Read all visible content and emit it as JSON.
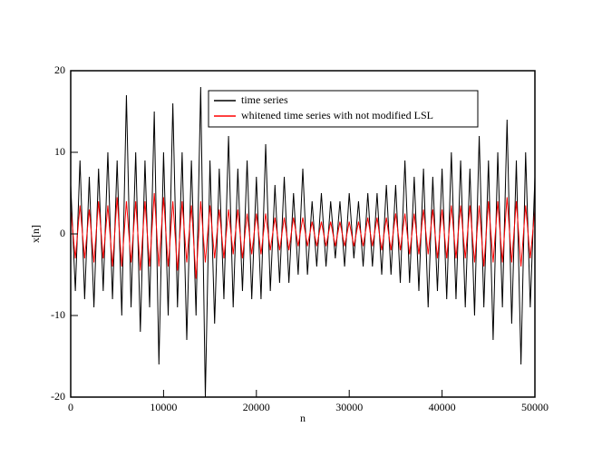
{
  "chart_data": {
    "type": "line",
    "xlabel": "n",
    "ylabel": "x[n]",
    "xlim": [
      0,
      50000
    ],
    "xticks": [
      0,
      10000,
      20000,
      30000,
      40000,
      50000
    ],
    "ylim": [
      -20,
      20
    ],
    "yticks": [
      -20,
      -10,
      0,
      10,
      20
    ],
    "legend": "upper center",
    "x": [
      0,
      500,
      1000,
      1500,
      2000,
      2500,
      3000,
      3500,
      4000,
      4500,
      5000,
      5500,
      6000,
      6500,
      7000,
      7500,
      8000,
      8500,
      9000,
      9500,
      10000,
      10500,
      11000,
      11500,
      12000,
      12500,
      13000,
      13500,
      14000,
      14500,
      15000,
      15500,
      16000,
      16500,
      17000,
      17500,
      18000,
      18500,
      19000,
      19500,
      20000,
      20500,
      21000,
      21500,
      22000,
      22500,
      23000,
      23500,
      24000,
      24500,
      25000,
      25500,
      26000,
      26500,
      27000,
      27500,
      28000,
      28500,
      29000,
      29500,
      30000,
      30500,
      31000,
      31500,
      32000,
      32500,
      33000,
      33500,
      34000,
      34500,
      35000,
      35500,
      36000,
      36500,
      37000,
      37500,
      38000,
      38500,
      39000,
      39500,
      40000,
      40500,
      41000,
      41500,
      42000,
      42500,
      43000,
      43500,
      44000,
      44500,
      45000,
      45500,
      46000,
      46500,
      47000,
      47500,
      48000,
      48500,
      49000,
      49500,
      50000
    ],
    "series": [
      {
        "name": "time series",
        "color": "#000000",
        "values": [
          6,
          -7,
          9,
          -8,
          7,
          -9,
          8,
          -7,
          10,
          -8,
          9,
          -10,
          17,
          -9,
          10,
          -12,
          9,
          -9,
          15,
          -16,
          10,
          -10,
          16,
          -9,
          10,
          -13,
          9,
          -10,
          18,
          -20,
          9,
          -11,
          8,
          -8,
          12,
          -9,
          8,
          -7,
          9,
          -8,
          7,
          -8,
          11,
          -7,
          6,
          -6,
          7,
          -6,
          5,
          -5,
          8,
          -5,
          4,
          -4,
          5,
          -4,
          4,
          -3,
          4,
          -4,
          5,
          -3,
          4,
          -4,
          5,
          -4,
          5,
          -5,
          6,
          -5,
          6,
          -6,
          9,
          -6,
          7,
          -7,
          8,
          -9,
          7,
          -7,
          8,
          -8,
          10,
          -8,
          9,
          -9,
          8,
          -10,
          12,
          -9,
          9,
          -13,
          10,
          -9,
          14,
          -11,
          9,
          -16,
          10,
          -9,
          7
        ]
      },
      {
        "name": "whitened time series with not modified LSL",
        "color": "#ff0000",
        "values": [
          3,
          -3,
          3.5,
          -3,
          3,
          -3.5,
          4,
          -3,
          3.5,
          -4,
          4.5,
          -4,
          4,
          -3.5,
          4,
          -4.5,
          4,
          -4,
          5,
          -4,
          4.5,
          -4,
          4,
          -4.5,
          4,
          -3.5,
          3.5,
          -5.5,
          4,
          -3.5,
          3.5,
          -3,
          3,
          -3,
          3,
          -2.5,
          3,
          -3,
          2.5,
          -2.5,
          2.5,
          -2.5,
          2.5,
          -2,
          2,
          -2,
          2,
          -2,
          2,
          -1.5,
          2,
          -1.5,
          1.5,
          -1.5,
          1.5,
          -1.5,
          1.5,
          -1.5,
          1.5,
          -1.5,
          1.5,
          -1.5,
          1.5,
          -1.5,
          2,
          -1.5,
          2,
          -2,
          2,
          -2,
          2.5,
          -2,
          2.5,
          -2.5,
          2.5,
          -2.5,
          3,
          -2.5,
          3,
          -3,
          3,
          -3,
          3.5,
          -3,
          3.5,
          -3,
          3.5,
          -3.5,
          3.5,
          -4,
          4,
          -3.5,
          4,
          -3.5,
          4.5,
          -3.5,
          4,
          -4,
          3.5,
          -3,
          3
        ]
      }
    ]
  }
}
